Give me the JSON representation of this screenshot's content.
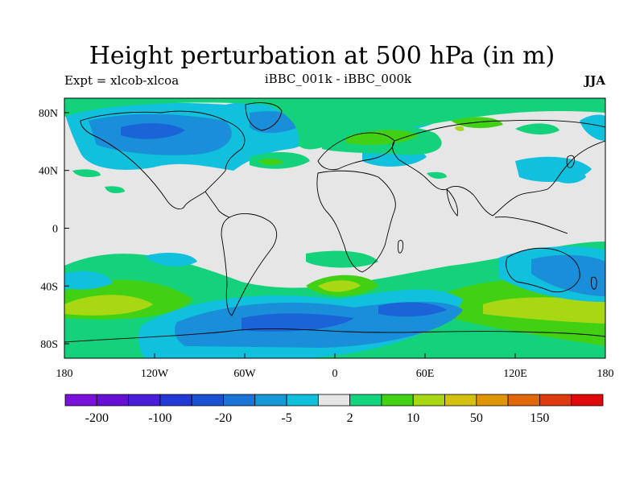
{
  "title": "Height perturbation at 500 hPa (in m)",
  "subtitle_left": "Expt = xlcob-xlcoa",
  "subtitle_center": "iBBC_001k - iBBC_000k",
  "subtitle_right": "JJA",
  "x_ticks": [
    "180",
    "120W",
    "60W",
    "0",
    "60E",
    "120E",
    "180"
  ],
  "y_ticks": [
    "80N",
    "40N",
    "0",
    "40S",
    "80S"
  ],
  "colorbar": {
    "colors": [
      "#7a12dc",
      "#6610d6",
      "#4a1ed8",
      "#2438d6",
      "#1a50d2",
      "#1c74d6",
      "#1898d6",
      "#10c0dc",
      "#e6e6e6",
      "#14d480",
      "#44d214",
      "#a8d814",
      "#d4c010",
      "#e09408",
      "#e06808",
      "#e03a12",
      "#e00a0a"
    ],
    "labels": [
      "-200",
      "-100",
      "-20",
      "-5",
      "2",
      "10",
      "50",
      "150"
    ]
  },
  "map": {
    "background": "#e6e6e6",
    "palette": {
      "blue": "#1a64d8",
      "mid_blue": "#1a8ed8",
      "cyan": "#10c0dc",
      "teal": "#14d27c",
      "green": "#42d014",
      "yellow_green": "#a8d814"
    }
  }
}
